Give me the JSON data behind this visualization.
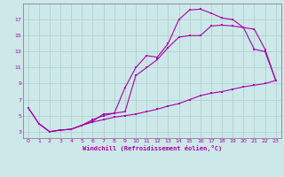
{
  "xlabel": "Windchill (Refroidissement éolien,°C)",
  "bg_color": "#cce8e8",
  "grid_color": "#aacccc",
  "line_color": "#aa00aa",
  "spine_color": "#886688",
  "xlim": [
    -0.5,
    23.5
  ],
  "ylim": [
    2.2,
    19.0
  ],
  "xticks": [
    0,
    1,
    2,
    3,
    4,
    5,
    6,
    7,
    8,
    9,
    10,
    11,
    12,
    13,
    14,
    15,
    16,
    17,
    18,
    19,
    20,
    21,
    22,
    23
  ],
  "yticks": [
    3,
    5,
    7,
    9,
    11,
    13,
    15,
    17
  ],
  "line1_x": [
    0,
    1,
    2,
    3,
    4,
    5,
    6,
    7,
    8,
    9,
    10,
    11,
    12,
    13,
    14,
    15,
    16,
    17,
    18,
    19,
    20,
    21,
    22,
    23
  ],
  "line1_y": [
    6.0,
    4.0,
    3.0,
    3.2,
    3.3,
    3.8,
    4.2,
    4.5,
    4.8,
    5.0,
    5.2,
    5.5,
    5.8,
    6.2,
    6.5,
    7.0,
    7.5,
    7.8,
    8.0,
    8.3,
    8.6,
    8.8,
    9.0,
    9.4
  ],
  "line2_x": [
    0,
    1,
    2,
    3,
    4,
    5,
    6,
    7,
    8,
    9,
    10,
    11,
    12,
    13,
    14,
    15,
    16,
    17,
    18,
    19,
    20,
    21,
    22,
    23
  ],
  "line2_y": [
    6.0,
    4.0,
    3.0,
    3.2,
    3.3,
    3.8,
    4.5,
    5.0,
    5.3,
    8.5,
    11.0,
    12.5,
    12.3,
    14.0,
    17.0,
    18.2,
    18.3,
    17.8,
    17.2,
    17.0,
    16.0,
    13.3,
    13.0,
    9.4
  ],
  "line3_x": [
    1,
    2,
    3,
    4,
    5,
    6,
    7,
    8,
    9,
    10,
    11,
    12,
    13,
    14,
    15,
    16,
    17,
    18,
    19,
    20,
    21,
    22,
    23
  ],
  "line3_y": [
    4.0,
    3.0,
    3.2,
    3.3,
    3.8,
    4.3,
    5.2,
    5.3,
    5.5,
    10.0,
    11.0,
    12.0,
    13.5,
    14.8,
    15.0,
    15.0,
    16.2,
    16.3,
    16.2,
    16.0,
    15.8,
    13.3,
    9.4
  ]
}
